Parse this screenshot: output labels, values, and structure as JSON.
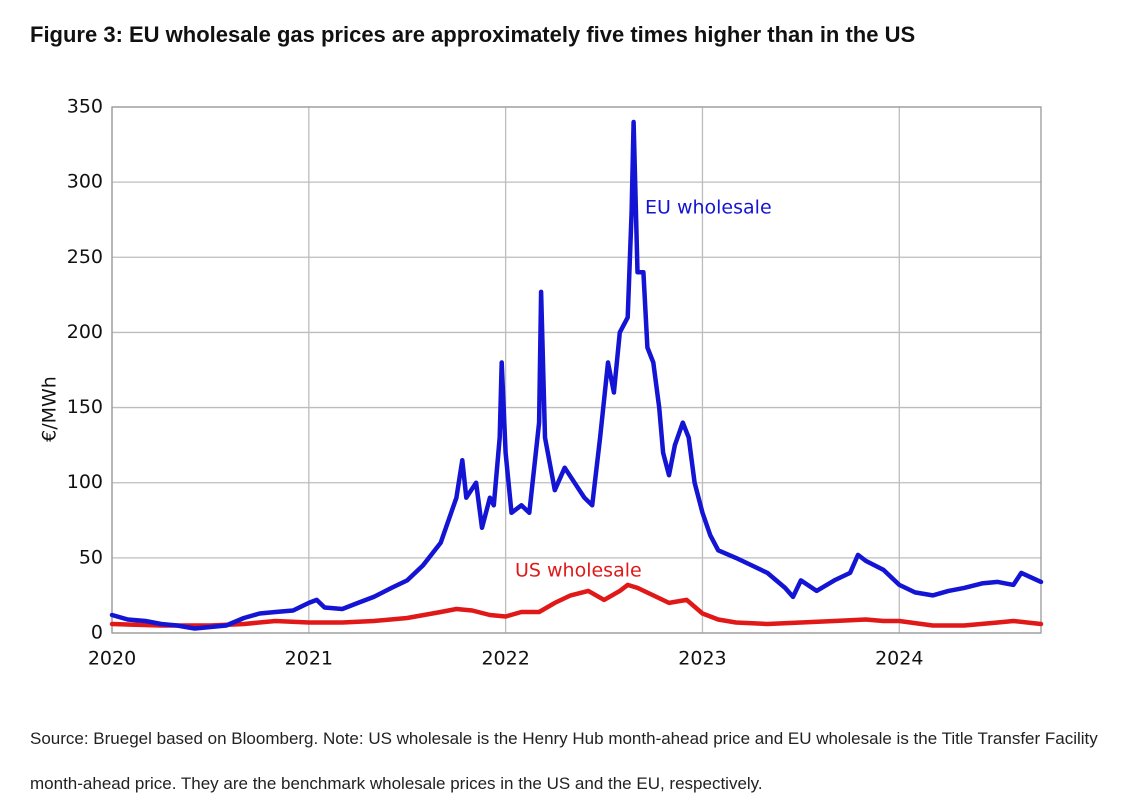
{
  "chart_data": {
    "type": "line",
    "title": "Figure 3: EU wholesale gas prices are approximately five times higher than in the US",
    "ylabel": "€/MWh",
    "source": "Source: Bruegel based on Bloomberg. Note: US wholesale is the Henry Hub month-ahead price and EU wholesale is the Title Transfer Facility month-ahead price. They are the benchmark wholesale prices in the US and the EU, respectively.",
    "annotations": [
      "EU wholesale",
      "US wholesale"
    ],
    "xlim": [
      2020,
      2024.72
    ],
    "xticks": [
      2020,
      2021,
      2022,
      2023,
      2024
    ],
    "ylim": [
      0,
      350
    ],
    "yticks": [
      0,
      50,
      100,
      150,
      200,
      250,
      300,
      350
    ],
    "grid": true,
    "series": [
      {
        "name": "EU wholesale",
        "color": "#1414d4",
        "x": [
          2020.0,
          2020.08,
          2020.17,
          2020.25,
          2020.33,
          2020.42,
          2020.5,
          2020.58,
          2020.67,
          2020.75,
          2020.83,
          2020.92,
          2021.0,
          2021.04,
          2021.08,
          2021.17,
          2021.25,
          2021.33,
          2021.42,
          2021.5,
          2021.58,
          2021.67,
          2021.75,
          2021.78,
          2021.8,
          2021.85,
          2021.88,
          2021.92,
          2021.94,
          2021.97,
          2021.98,
          2022.0,
          2022.03,
          2022.08,
          2022.12,
          2022.17,
          2022.18,
          2022.2,
          2022.25,
          2022.3,
          2022.35,
          2022.4,
          2022.44,
          2022.48,
          2022.52,
          2022.55,
          2022.58,
          2022.62,
          2022.64,
          2022.65,
          2022.67,
          2022.7,
          2022.72,
          2022.75,
          2022.78,
          2022.8,
          2022.83,
          2022.86,
          2022.9,
          2022.93,
          2022.96,
          2023.0,
          2023.04,
          2023.08,
          2023.17,
          2023.25,
          2023.33,
          2023.42,
          2023.46,
          2023.5,
          2023.58,
          2023.67,
          2023.75,
          2023.79,
          2023.83,
          2023.92,
          2024.0,
          2024.08,
          2024.17,
          2024.25,
          2024.33,
          2024.42,
          2024.5,
          2024.58,
          2024.62,
          2024.72
        ],
        "values": [
          12,
          9,
          8,
          6,
          5,
          3,
          4,
          5,
          10,
          13,
          14,
          15,
          20,
          22,
          17,
          16,
          20,
          24,
          30,
          35,
          45,
          60,
          90,
          115,
          90,
          100,
          70,
          90,
          85,
          130,
          180,
          120,
          80,
          85,
          80,
          140,
          227,
          130,
          95,
          110,
          100,
          90,
          85,
          130,
          180,
          160,
          200,
          210,
          280,
          340,
          240,
          240,
          190,
          180,
          150,
          120,
          105,
          125,
          140,
          130,
          100,
          80,
          65,
          55,
          50,
          45,
          40,
          30,
          24,
          35,
          28,
          35,
          40,
          52,
          48,
          42,
          32,
          27,
          25,
          28,
          30,
          33,
          34,
          32,
          40,
          34
        ]
      },
      {
        "name": "US wholesale",
        "color": "#e01818",
        "x": [
          2020.0,
          2020.25,
          2020.5,
          2020.67,
          2020.83,
          2021.0,
          2021.17,
          2021.33,
          2021.5,
          2021.67,
          2021.75,
          2021.83,
          2021.92,
          2022.0,
          2022.08,
          2022.17,
          2022.25,
          2022.33,
          2022.42,
          2022.5,
          2022.58,
          2022.62,
          2022.67,
          2022.75,
          2022.83,
          2022.92,
          2023.0,
          2023.08,
          2023.17,
          2023.33,
          2023.5,
          2023.67,
          2023.83,
          2023.92,
          2024.0,
          2024.17,
          2024.33,
          2024.5,
          2024.58,
          2024.72
        ],
        "values": [
          6,
          5,
          5,
          6,
          8,
          7,
          7,
          8,
          10,
          14,
          16,
          15,
          12,
          11,
          14,
          14,
          20,
          25,
          28,
          22,
          28,
          32,
          30,
          25,
          20,
          22,
          13,
          9,
          7,
          6,
          7,
          8,
          9,
          8,
          8,
          5,
          5,
          7,
          8,
          6
        ]
      }
    ]
  }
}
